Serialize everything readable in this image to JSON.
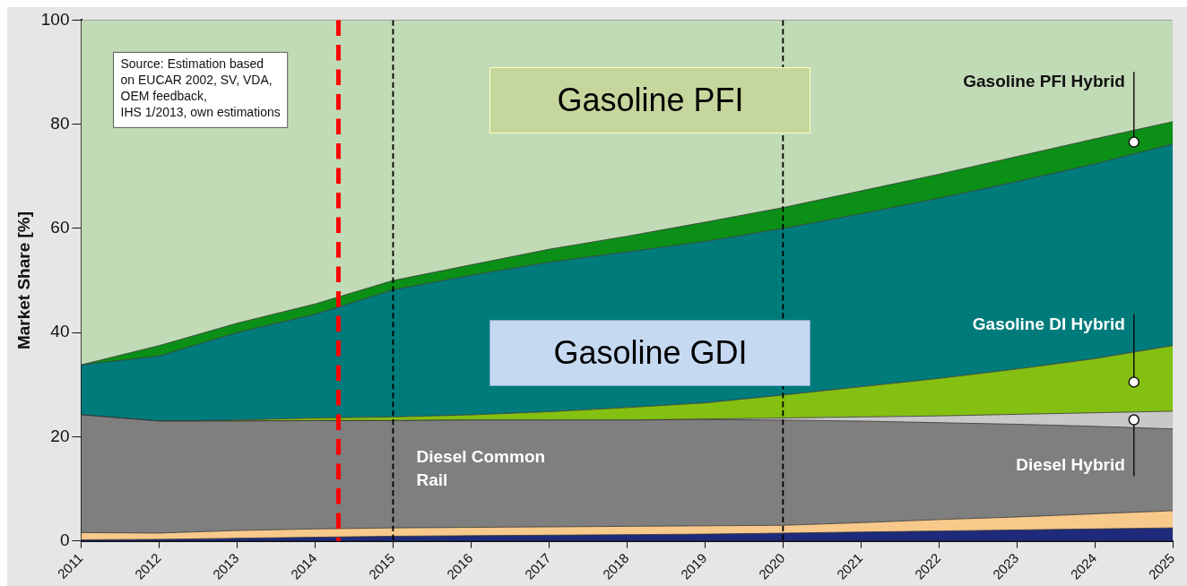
{
  "chart_data": {
    "type": "area",
    "stacked": true,
    "ylabel": "Market Share [%]",
    "x": [
      2011,
      2012,
      2013,
      2014,
      2015,
      2016,
      2017,
      2018,
      2019,
      2020,
      2021,
      2022,
      2023,
      2024,
      2025
    ],
    "xlim": [
      2011,
      2025
    ],
    "xticks": [
      2011,
      2012,
      2013,
      2014,
      2015,
      2016,
      2017,
      2018,
      2019,
      2020,
      2021,
      2022,
      2023,
      2024,
      2025
    ],
    "ylim": [
      0,
      100
    ],
    "yticks": [
      0,
      20,
      40,
      60,
      80,
      100
    ],
    "grid": false,
    "legend": false,
    "series": [
      {
        "color": "#1f2a7a",
        "values": [
          0.2,
          0.3,
          0.5,
          0.7,
          0.9,
          1.0,
          1.1,
          1.2,
          1.3,
          1.5,
          1.7,
          1.9,
          2.1,
          2.3,
          2.5
        ]
      },
      {
        "color": "#f7c98b",
        "values": [
          1.4,
          1.2,
          1.5,
          1.6,
          1.6,
          1.6,
          1.6,
          1.6,
          1.6,
          1.5,
          1.8,
          2.2,
          2.5,
          2.9,
          3.3
        ]
      },
      {
        "name": "Diesel Common Rail",
        "color": "#7f7f7f",
        "values": [
          22.6,
          21.5,
          21.0,
          20.8,
          20.6,
          20.6,
          20.5,
          20.4,
          20.4,
          20.2,
          19.5,
          18.6,
          17.8,
          16.8,
          15.7
        ]
      },
      {
        "name": "Diesel Hybrid",
        "color": "#c8c8c8",
        "values": [
          0,
          0,
          0,
          0,
          0,
          0,
          0,
          0,
          0.1,
          0.4,
          0.8,
          1.3,
          1.9,
          2.6,
          3.4
        ]
      },
      {
        "name": "Gasoline DI Hybrid",
        "color": "#84c011",
        "values": [
          0,
          0,
          0.2,
          0.5,
          0.7,
          1.0,
          1.6,
          2.4,
          3.1,
          4.4,
          5.8,
          7.2,
          8.7,
          10.4,
          12.6
        ]
      },
      {
        "name": "Gasoline GDI",
        "color": "#007b7b",
        "values": [
          9.6,
          12.5,
          16.8,
          19.9,
          24.4,
          26.8,
          28.7,
          29.9,
          31.0,
          32.0,
          33.2,
          34.6,
          36.0,
          37.4,
          38.7
        ]
      },
      {
        "name": "Gasoline PFI Hybrid",
        "color": "#0b8f17",
        "values": [
          0,
          2.0,
          1.8,
          2.0,
          1.8,
          2.0,
          2.5,
          3.0,
          3.7,
          4.0,
          4.4,
          4.6,
          4.8,
          4.8,
          4.3
        ]
      },
      {
        "name": "Gasoline PFI",
        "color": "#c1dbb6",
        "values": [
          66.2,
          62.5,
          58.2,
          54.5,
          50,
          47,
          44,
          41.5,
          38.8,
          36,
          32.8,
          29.6,
          26.2,
          22.8,
          19.5
        ]
      }
    ],
    "ref_lines": [
      {
        "axis": "x",
        "value": 2014.3,
        "color": "#ff0000",
        "line_style": "dashed"
      },
      {
        "axis": "x",
        "value": 2015,
        "color": "#000000",
        "line_style": "dashed"
      },
      {
        "axis": "x",
        "value": 2020,
        "color": "#000000",
        "line_style": "dashed"
      }
    ],
    "annotations": [
      "Source: Estimation based\non EUCAR 2002, SV, VDA,\nOEM feedback,\nIHS 1/2013, own estimations"
    ]
  }
}
